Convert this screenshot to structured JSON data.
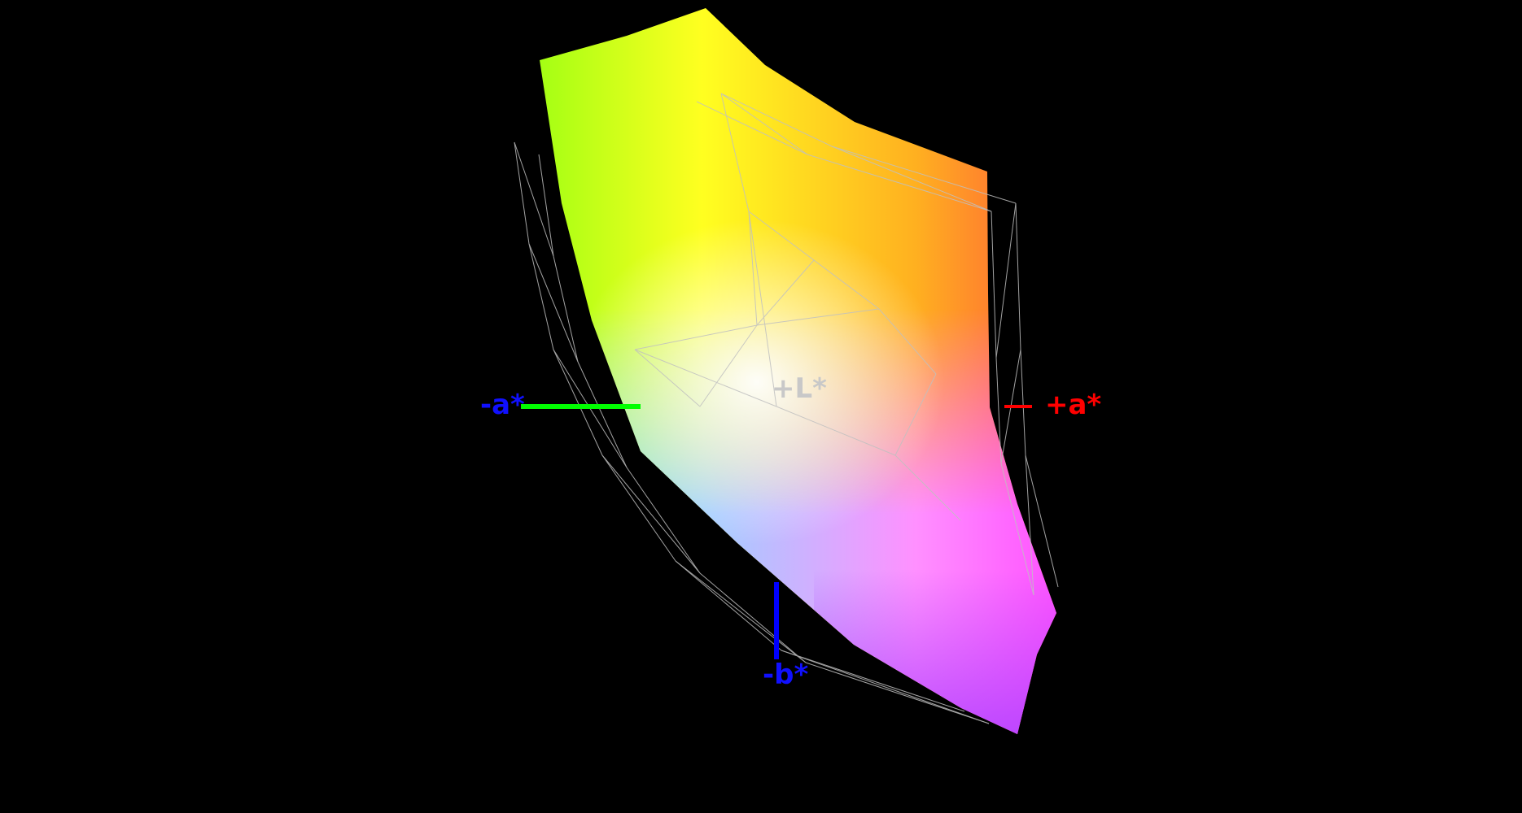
{
  "axes": {
    "minus_a": {
      "label": "-a*",
      "color": "#1010ff",
      "line_color": "#00ff00"
    },
    "plus_a": {
      "label": "+a*",
      "color": "#ff0000",
      "line_color": "#ff0000"
    },
    "minus_b": {
      "label": "-b*",
      "color": "#1010ff",
      "line_color": "#0000ff"
    },
    "plus_L": {
      "label": "+L*",
      "color": "#c8c8c8"
    }
  },
  "background": "#000000",
  "wireframe_color": "#c0c0c0"
}
